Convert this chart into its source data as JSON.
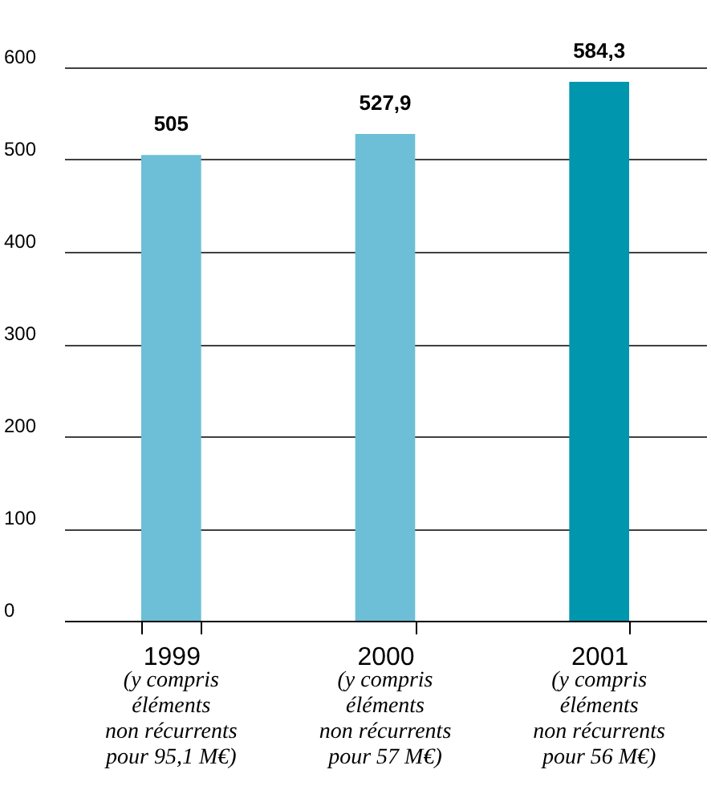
{
  "chart_data": {
    "type": "bar",
    "categories": [
      "1999",
      "2000",
      "2001"
    ],
    "values": [
      505,
      527.9,
      584.3
    ],
    "colors": [
      "#6cbfd6",
      "#6cbfd6",
      "#0096ae"
    ],
    "value_labels": [
      "505",
      "527,9",
      "584,3"
    ],
    "ylim": [
      0,
      600
    ],
    "yticks": [
      0,
      100,
      200,
      300,
      400,
      500,
      600
    ],
    "grid": "y",
    "annotations": [
      "(y compris\néléments\nnon récurrents\npour 95,1 M€)",
      "(y compris\néléments\nnon récurrents\npour 57 M€)",
      "(y compris\néléments\nnon récurrents\npour 56 M€)"
    ]
  }
}
